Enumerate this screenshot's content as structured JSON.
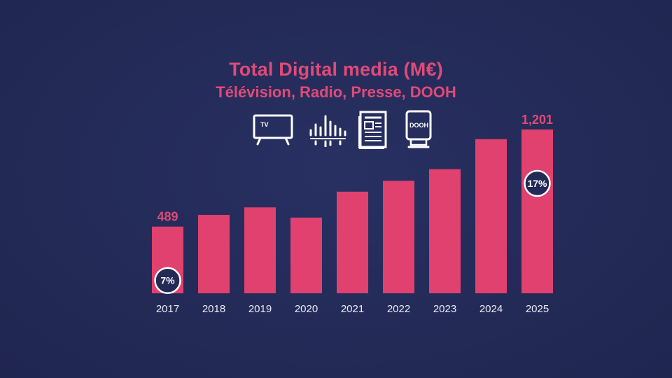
{
  "colors": {
    "background": "#232a56",
    "accent": "#e04a78",
    "bar": "#e0416f",
    "text_light": "#e9ebf4",
    "badge_fill": "#232a56",
    "badge_stroke": "#ffffff"
  },
  "icons": [
    {
      "name": "tv-icon",
      "label": "TV"
    },
    {
      "name": "radio-waveform-icon",
      "label": ""
    },
    {
      "name": "newspaper-icon",
      "label": ""
    },
    {
      "name": "dooh-billboard-icon",
      "label": "DOOH"
    }
  ],
  "chart_data": {
    "type": "bar",
    "title": "Total Digital media (M€)",
    "subtitle": "Télévision, Radio, Presse, DOOH",
    "categories": [
      "2017",
      "2018",
      "2019",
      "2020",
      "2021",
      "2022",
      "2023",
      "2024",
      "2025"
    ],
    "values": [
      489,
      575,
      630,
      555,
      745,
      825,
      910,
      1130,
      1201
    ],
    "data_labels": [
      {
        "category": "2017",
        "text": "489"
      },
      {
        "category": "2025",
        "text": "1,201"
      }
    ],
    "badges": [
      {
        "category": "2017",
        "text": "7%"
      },
      {
        "category": "2025",
        "text": "17%"
      }
    ],
    "xlabel": "",
    "ylabel": "",
    "ylim": [
      0,
      1201
    ],
    "grid": false,
    "legend": "none"
  }
}
